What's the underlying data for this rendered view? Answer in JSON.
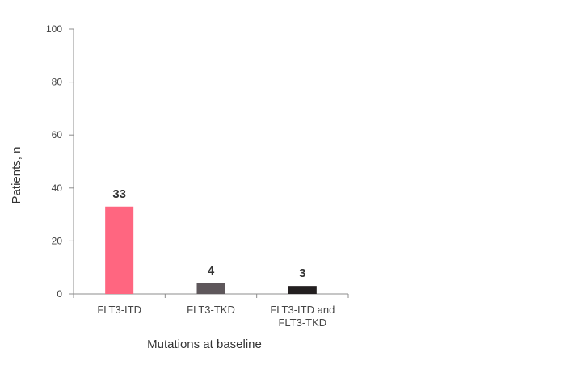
{
  "chart_data": {
    "type": "bar",
    "title": "",
    "xlabel": "Mutations at baseline",
    "ylabel": "Patients, n",
    "ylim": [
      0,
      100
    ],
    "yticks": [
      0,
      20,
      40,
      60,
      80,
      100
    ],
    "grid": false,
    "categories": [
      [
        "FLT3-ITD"
      ],
      [
        "FLT3-TKD"
      ],
      [
        "FLT3-ITD and",
        "FLT3-TKD"
      ]
    ],
    "values": [
      33,
      4,
      3
    ],
    "data_labels": [
      "33",
      "4",
      "3"
    ],
    "colors": [
      "#ff6680",
      "#5e575b",
      "#231f20"
    ]
  }
}
